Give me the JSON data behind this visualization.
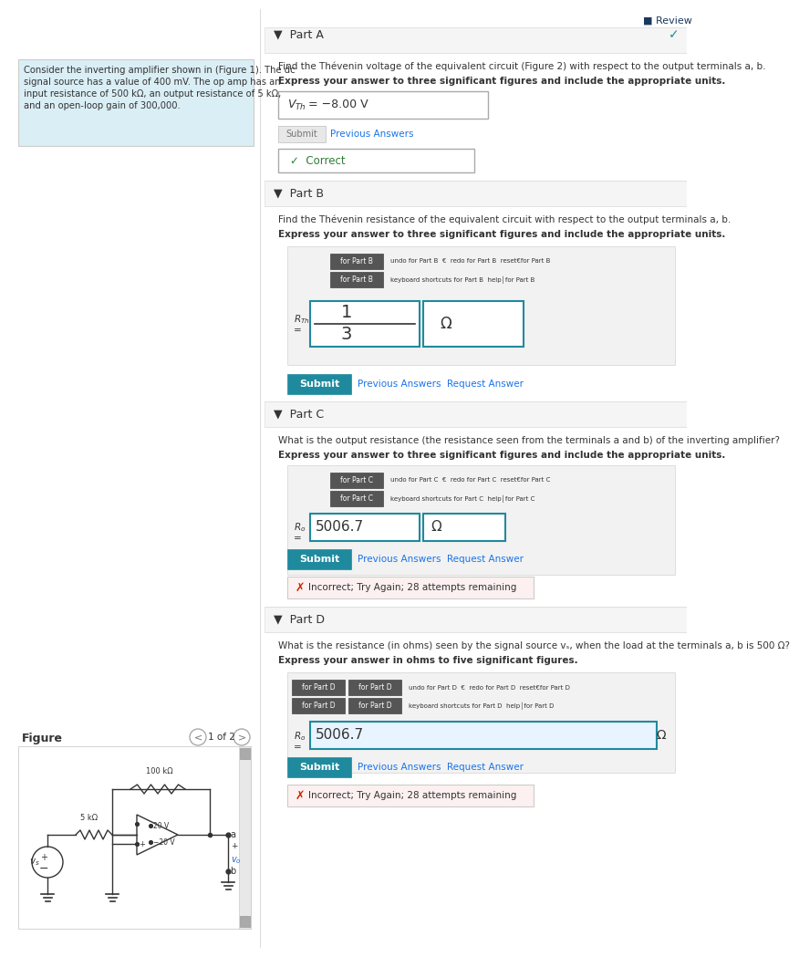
{
  "bg_color": "#ffffff",
  "white": "#ffffff",
  "teal": "#1f8a9e",
  "light_blue_bg": "#daeef5",
  "gray_bg": "#f0f0f0",
  "border_gray": "#cccccc",
  "dark_text": "#333333",
  "link_blue": "#1a73e8",
  "red_color": "#cc2200",
  "green_color": "#2e7d32",
  "review_blue": "#1a3a5c",
  "toolbar_gray": "#555555",
  "header_bg": "#f5f5f5",
  "submit_gray": "#dddddd",
  "incorrect_bg": "#fdf0f0",
  "part_d_input_bg": "#e8f4ff",
  "problem_text_line1": "Consider the inverting amplifier shown in (Figure 1). The dc",
  "problem_text_line2": "signal source has a value of 400 mV. The op amp has an",
  "problem_text_line3": "input resistance of 500 kΩ, an output resistance of 5 kΩ,",
  "problem_text_line4": "and an open-loop gain of 300,000.",
  "part_a_q1": "Find the Thévenin voltage of the equivalent circuit (Figure 2) with respect to the output terminals a, b.",
  "part_a_q2": "Express your answer to three significant figures and include the appropriate units.",
  "part_b_q1": "Find the Thévenin resistance of the equivalent circuit with respect to the output terminals a, b.",
  "part_b_q2": "Express your answer to three significant figures and include the appropriate units.",
  "part_c_q1": "What is the output resistance (the resistance seen from the terminals a and b) of the inverting amplifier?",
  "part_c_q2": "Express your answer to three significant figures and include the appropriate units.",
  "part_d_q1": "What is the resistance (in ohms) seen by the signal source vₛ, when the load at the terminals a, b is 500 Ω?",
  "part_d_q2": "Express your answer in ohms to five significant figures."
}
